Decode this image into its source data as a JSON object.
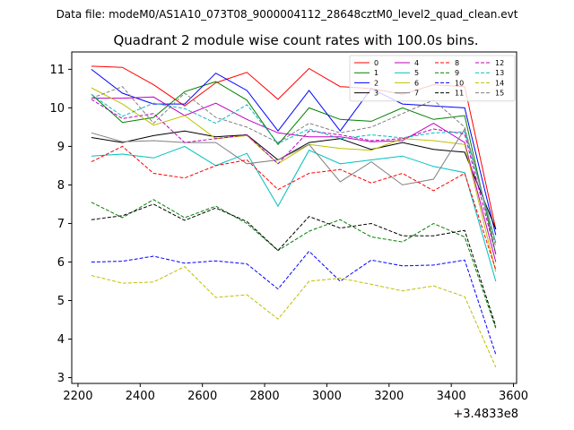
{
  "figure": {
    "suptitle": "Data file: modeM0/AS1A10_073T08_9000004112_28648cztM0_level2_quad_clean.evt"
  },
  "chart_data": {
    "type": "line",
    "title": "Quadrant 2 module wise count rates with 100.0s bins.",
    "xlabel": "",
    "ylabel": "",
    "x_offset_label": "+3.4833e8",
    "x": [
      2243,
      2343,
      2443,
      2543,
      2643,
      2743,
      2843,
      2943,
      3043,
      3143,
      3243,
      3343,
      3443,
      3543
    ],
    "xlim": [
      2180,
      3610
    ],
    "ylim": [
      2.85,
      11.45
    ],
    "xticks": [
      2200,
      2400,
      2600,
      2800,
      3000,
      3200,
      3400,
      3600
    ],
    "xtick_labels": [
      "2200",
      "2400",
      "2600",
      "2800",
      "3000",
      "3200",
      "3400",
      "3600"
    ],
    "yticks": [
      3,
      4,
      5,
      6,
      7,
      8,
      9,
      10,
      11
    ],
    "ytick_labels": [
      "3",
      "4",
      "5",
      "6",
      "7",
      "8",
      "9",
      "10",
      "11"
    ],
    "grid": false,
    "legend_placement": "top-right",
    "legend_columns": 4,
    "series": [
      {
        "name": "0",
        "color": "#ff0000",
        "dash": "solid",
        "values": [
          11.08,
          11.05,
          10.6,
          10.05,
          10.65,
          10.92,
          10.22,
          11.02,
          10.55,
          10.5,
          10.35,
          10.6,
          10.55,
          6.85
        ]
      },
      {
        "name": "1",
        "color": "#008000",
        "dash": "solid",
        "values": [
          10.35,
          9.62,
          9.75,
          10.42,
          10.68,
          10.2,
          9.05,
          10.0,
          9.7,
          9.65,
          10.0,
          9.7,
          9.8,
          6.2
        ]
      },
      {
        "name": "2",
        "color": "#0000ff",
        "dash": "solid",
        "values": [
          11.0,
          10.38,
          10.1,
          10.1,
          10.9,
          10.45,
          9.4,
          10.45,
          9.4,
          10.5,
          10.1,
          10.05,
          10.0,
          6.7
        ]
      },
      {
        "name": "3",
        "color": "#000000",
        "dash": "solid",
        "values": [
          9.23,
          9.1,
          9.28,
          9.4,
          9.25,
          9.3,
          8.65,
          9.1,
          9.2,
          8.92,
          9.1,
          8.92,
          8.85,
          6.85
        ]
      },
      {
        "name": "4",
        "color": "#bf00bf",
        "dash": "solid",
        "values": [
          10.25,
          10.25,
          10.28,
          9.8,
          10.12,
          9.7,
          9.35,
          9.25,
          9.25,
          9.12,
          9.15,
          9.6,
          9.1,
          6.0
        ]
      },
      {
        "name": "5",
        "color": "#00bfbf",
        "dash": "solid",
        "values": [
          8.75,
          8.8,
          8.7,
          9.0,
          8.5,
          8.82,
          7.45,
          8.9,
          8.55,
          8.65,
          8.75,
          8.48,
          8.32,
          5.5
        ]
      },
      {
        "name": "6",
        "color": "#bfbf00",
        "dash": "solid",
        "values": [
          10.52,
          10.1,
          9.55,
          9.8,
          9.2,
          9.28,
          8.55,
          9.05,
          8.95,
          8.9,
          9.2,
          9.15,
          9.05,
          5.75
        ]
      },
      {
        "name": "7",
        "color": "#808080",
        "dash": "solid",
        "values": [
          9.35,
          9.12,
          9.15,
          9.1,
          9.1,
          8.55,
          8.65,
          9.05,
          8.08,
          8.6,
          8.0,
          8.15,
          9.45,
          6.5
        ]
      },
      {
        "name": "8",
        "color": "#ff0000",
        "dash": "dashed",
        "values": [
          8.6,
          9.0,
          8.3,
          8.18,
          8.5,
          8.65,
          7.88,
          8.3,
          8.4,
          8.05,
          8.3,
          7.85,
          8.3,
          5.8
        ]
      },
      {
        "name": "9",
        "color": "#008000",
        "dash": "dashed",
        "values": [
          7.55,
          7.15,
          7.62,
          7.15,
          7.45,
          7.0,
          6.3,
          6.8,
          7.1,
          6.65,
          6.52,
          7.0,
          6.65,
          4.28
        ]
      },
      {
        "name": "10",
        "color": "#0000ff",
        "dash": "dashed",
        "values": [
          6.0,
          6.02,
          6.15,
          5.97,
          6.03,
          5.95,
          5.3,
          6.28,
          5.5,
          6.05,
          5.9,
          5.92,
          6.05,
          3.6
        ]
      },
      {
        "name": "11",
        "color": "#000000",
        "dash": "dashed",
        "values": [
          7.1,
          7.2,
          7.5,
          7.08,
          7.4,
          7.05,
          6.3,
          7.18,
          6.88,
          7.0,
          6.68,
          6.68,
          6.82,
          4.33
        ]
      },
      {
        "name": "12",
        "color": "#bf00bf",
        "dash": "dashed",
        "values": [
          10.22,
          9.72,
          9.85,
          9.1,
          9.2,
          9.3,
          8.55,
          9.4,
          9.3,
          9.15,
          9.2,
          9.45,
          9.32,
          6.2
        ]
      },
      {
        "name": "13",
        "color": "#00bfbf",
        "dash": "dashed",
        "values": [
          10.35,
          9.78,
          10.12,
          9.98,
          9.6,
          10.08,
          9.08,
          9.45,
          9.2,
          9.3,
          9.22,
          9.35,
          9.38,
          6.5
        ]
      },
      {
        "name": "14",
        "color": "#bfbf00",
        "dash": "dashed",
        "values": [
          5.65,
          5.45,
          5.48,
          5.88,
          5.08,
          5.15,
          4.52,
          5.5,
          5.58,
          5.42,
          5.25,
          5.38,
          5.1,
          3.27
        ]
      },
      {
        "name": "15",
        "color": "#808080",
        "dash": "dashed",
        "values": [
          10.25,
          10.55,
          9.6,
          10.38,
          9.75,
          9.5,
          9.1,
          9.6,
          9.35,
          9.5,
          9.85,
          10.2,
          9.5,
          6.4
        ]
      }
    ]
  }
}
